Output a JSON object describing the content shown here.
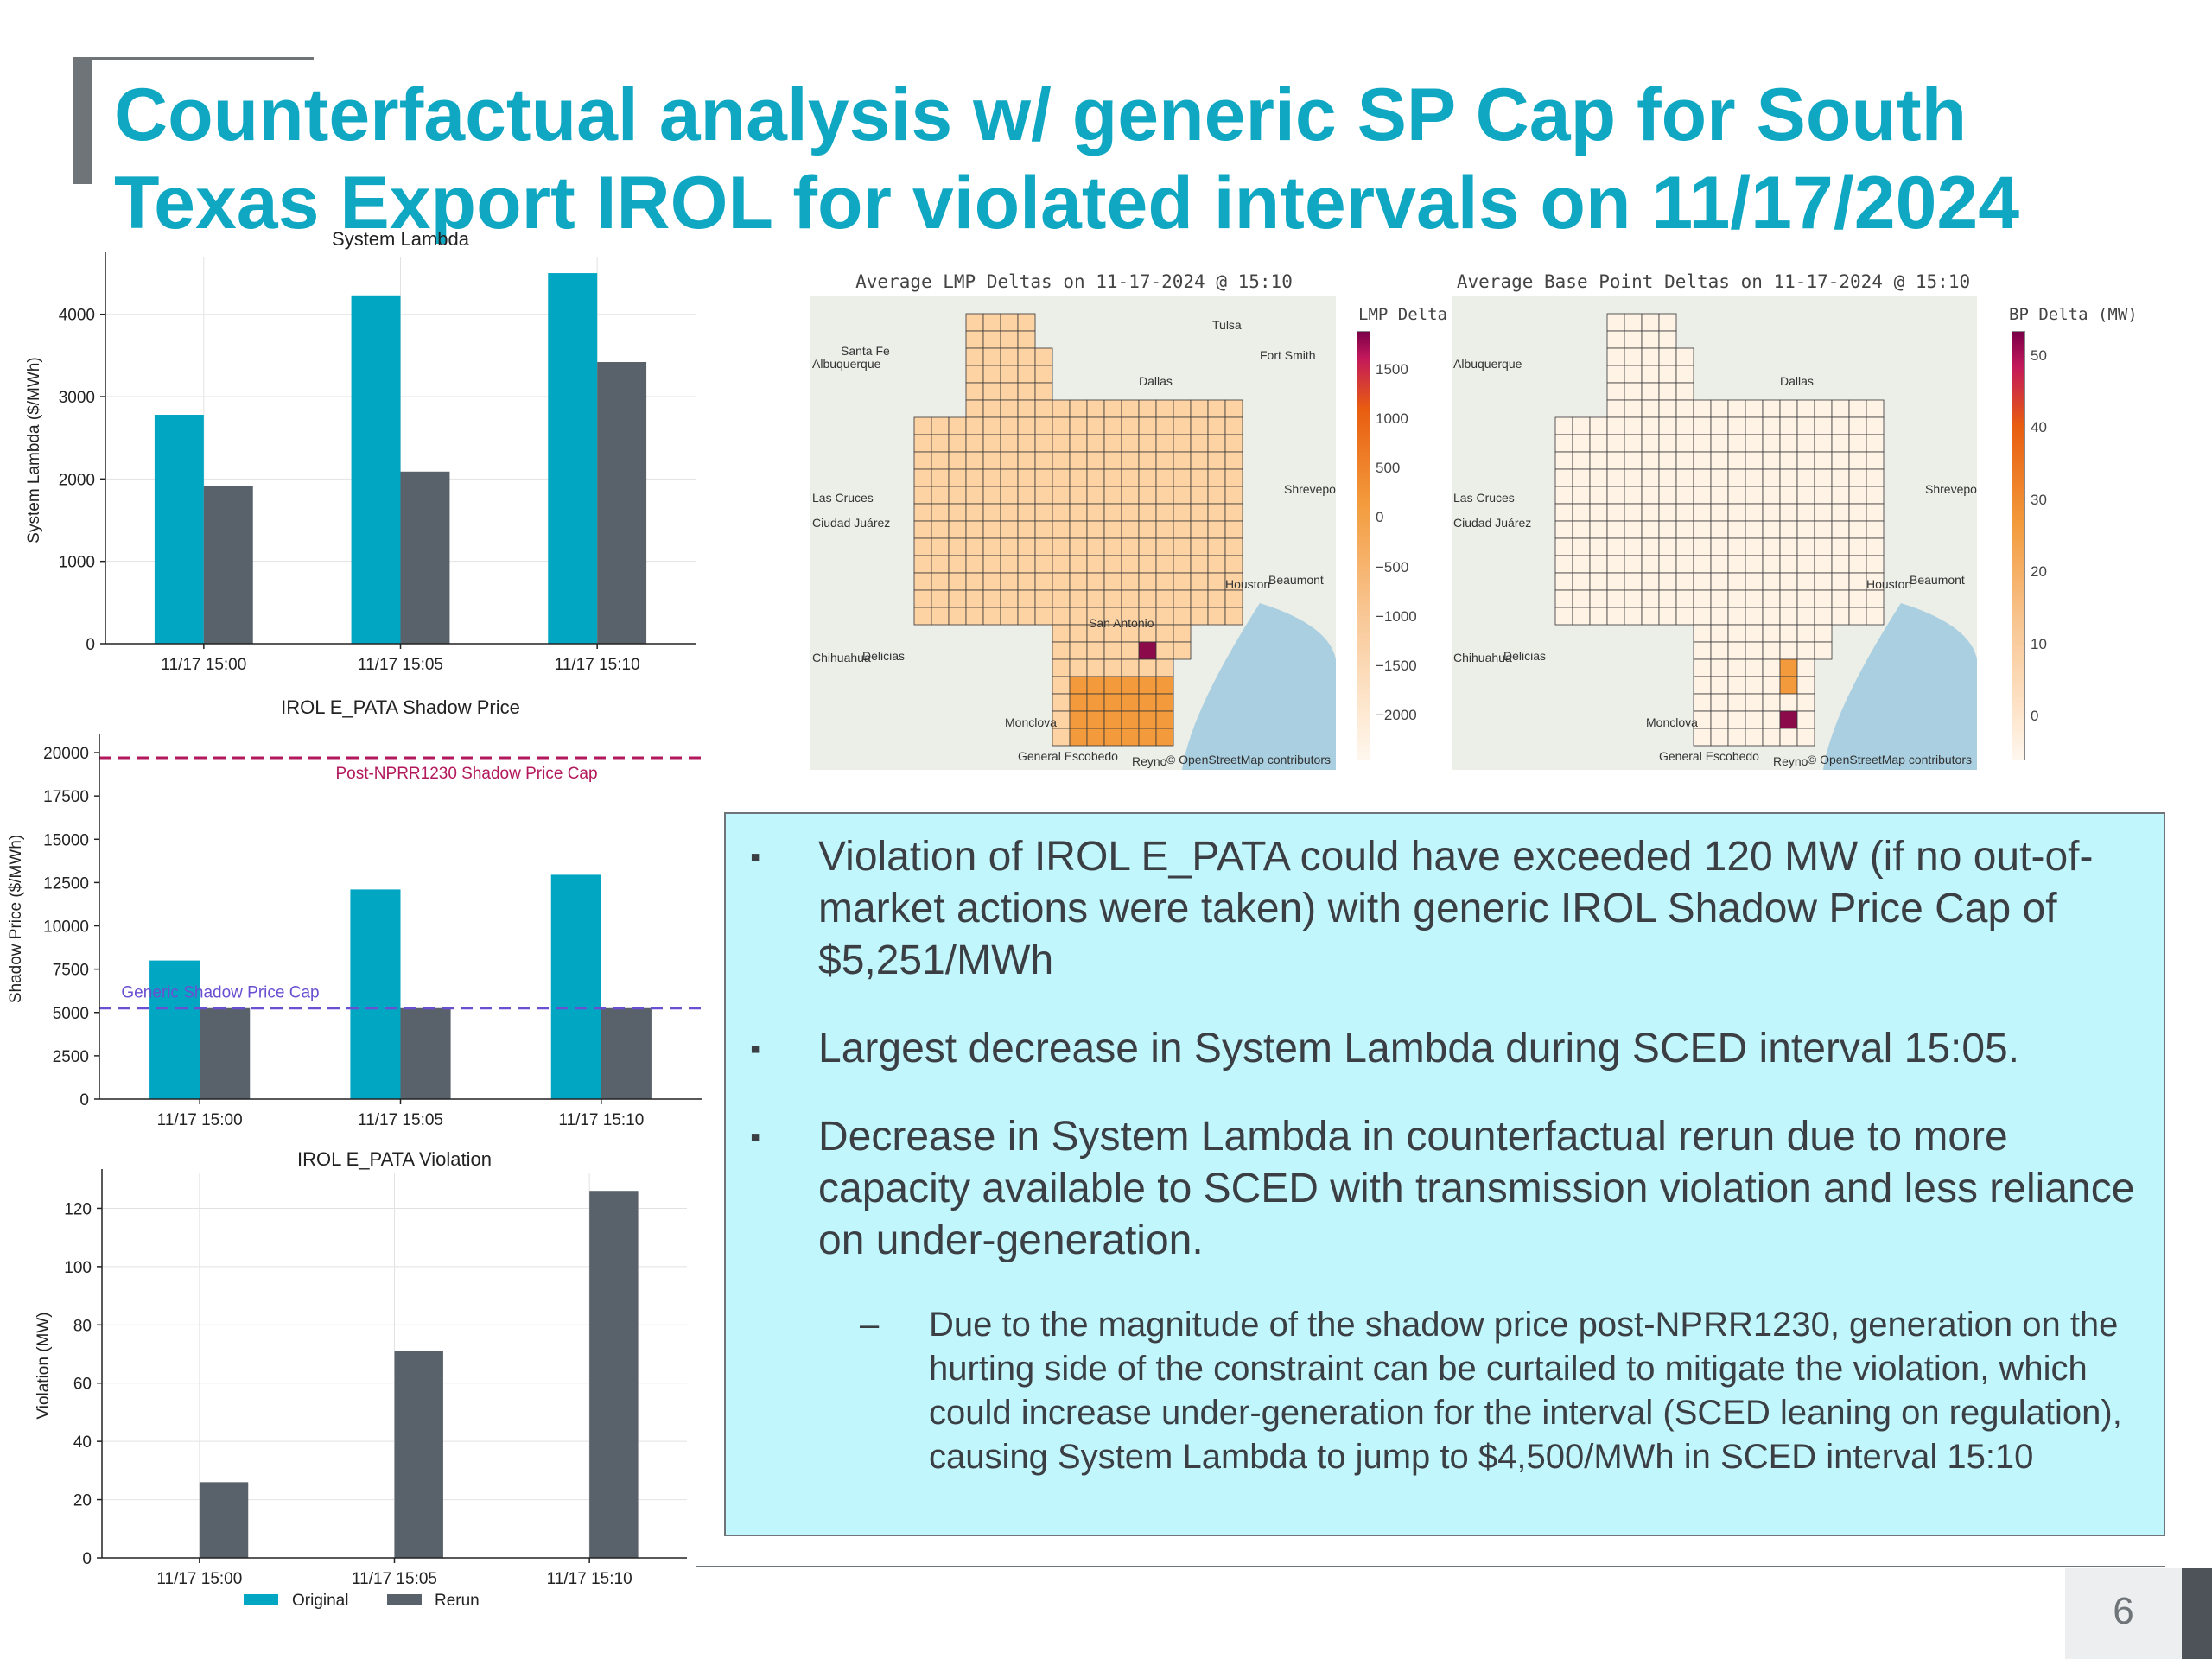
{
  "slide": {
    "title_line1": "Counterfactual analysis w/ generic SP Cap for South",
    "title_line2": "Texas Export IROL for violated intervals on 11/17/2024",
    "page_number": "6"
  },
  "colors": {
    "original": "#00a6c2",
    "rerun": "#59616a",
    "title": "#0fa7c2",
    "post_cap": "#b2185b",
    "generic_cap": "#6a4fd1"
  },
  "legend": {
    "original": "Original",
    "rerun": "Rerun"
  },
  "chart_data": [
    {
      "type": "bar",
      "title": "System Lambda",
      "xlabel": "",
      "ylabel": "System Lambda ($/MWh)",
      "categories": [
        "11/17 15:00",
        "11/17 15:05",
        "11/17 15:10"
      ],
      "series": [
        {
          "name": "Original",
          "values": [
            2780,
            4230,
            4500
          ]
        },
        {
          "name": "Rerun",
          "values": [
            1910,
            2090,
            3420
          ]
        }
      ],
      "ylim": [
        0,
        4700
      ],
      "yticks": [
        0,
        1000,
        2000,
        3000,
        4000
      ],
      "grid": true
    },
    {
      "type": "bar",
      "title": "IROL E_PATA Shadow Price",
      "xlabel": "",
      "ylabel": "Shadow Price ($/MWh)",
      "categories": [
        "11/17 15:00",
        "11/17 15:05",
        "11/17 15:10"
      ],
      "series": [
        {
          "name": "Original",
          "values": [
            8000,
            12100,
            12950
          ]
        },
        {
          "name": "Rerun",
          "values": [
            5251,
            5251,
            5251
          ]
        }
      ],
      "ylim": [
        0,
        20800
      ],
      "yticks": [
        0,
        2500,
        5000,
        7500,
        10000,
        12500,
        15000,
        17500,
        20000
      ],
      "grid": false,
      "reference_lines": [
        {
          "value": 19700,
          "label": "Post-NPRR1230 Shadow Price Cap"
        },
        {
          "value": 5251,
          "label": "Generic Shadow Price Cap"
        }
      ]
    },
    {
      "type": "bar",
      "title": "IROL E_PATA Violation",
      "xlabel": "",
      "ylabel": "Violation (MW)",
      "categories": [
        "11/17 15:00",
        "11/17 15:05",
        "11/17 15:10"
      ],
      "series": [
        {
          "name": "Original",
          "values": [
            0,
            0,
            0
          ]
        },
        {
          "name": "Rerun",
          "values": [
            26,
            71,
            126
          ]
        }
      ],
      "ylim": [
        0,
        132
      ],
      "yticks": [
        0,
        20,
        40,
        60,
        80,
        100,
        120
      ],
      "grid": true
    },
    {
      "type": "heatmap",
      "title": "Average LMP Deltas on 11-17-2024 @ 15:10",
      "colorbar_label": "LMP Delta (MW)",
      "colorbar_ticks": [
        "1500",
        "1000",
        "500",
        "0",
        "−500",
        "−1000",
        "−1500",
        "−2000"
      ],
      "attribution": "© OpenStreetMap contributors",
      "place_labels": [
        "Santa Fe",
        "Albuquerque",
        "Las Cruces",
        "Ciudad Juárez",
        "Chihuahua",
        "Delicias",
        "Monclova",
        "General Escobedo",
        "Reyno",
        "San Antonio",
        "Houston",
        "Beaumont",
        "Dallas",
        "Fort Smith",
        "Tulsa",
        "Shreveport"
      ]
    },
    {
      "type": "heatmap",
      "title": "Average Base Point Deltas on 11-17-2024 @ 15:10",
      "colorbar_label": "BP Delta (MW)",
      "colorbar_ticks": [
        "50",
        "40",
        "30",
        "20",
        "10",
        "0"
      ],
      "attribution": "© OpenStreetMap contributors",
      "place_labels": [
        "Albuquerque",
        "Las Cruces",
        "Ciudad Juárez",
        "Chihuahua",
        "Delicias",
        "Monclova",
        "General Escobedo",
        "Reyno",
        "Dallas",
        "Houston",
        "Beaumont",
        "Shreveport"
      ]
    }
  ],
  "bullets": [
    "Violation of IROL E_PATA could have exceeded 120 MW (if no out-of-market actions were taken) with generic IROL Shadow Price Cap of $5,251/MWh",
    "Largest decrease in System Lambda during SCED interval 15:05.",
    "Decrease in System Lambda in counterfactual rerun due to more capacity available to SCED with transmission violation and less reliance on under-generation."
  ],
  "bullet_mark": "▪",
  "sub_bullet_mark": "–",
  "sub_bullet": "Due to the magnitude of the shadow price post-NPRR1230, generation on the hurting side of the constraint can be curtailed to mitigate the violation, which could increase under-generation for the interval (SCED leaning on regulation), causing System Lambda to jump to $4,500/MWh in SCED interval 15:10"
}
